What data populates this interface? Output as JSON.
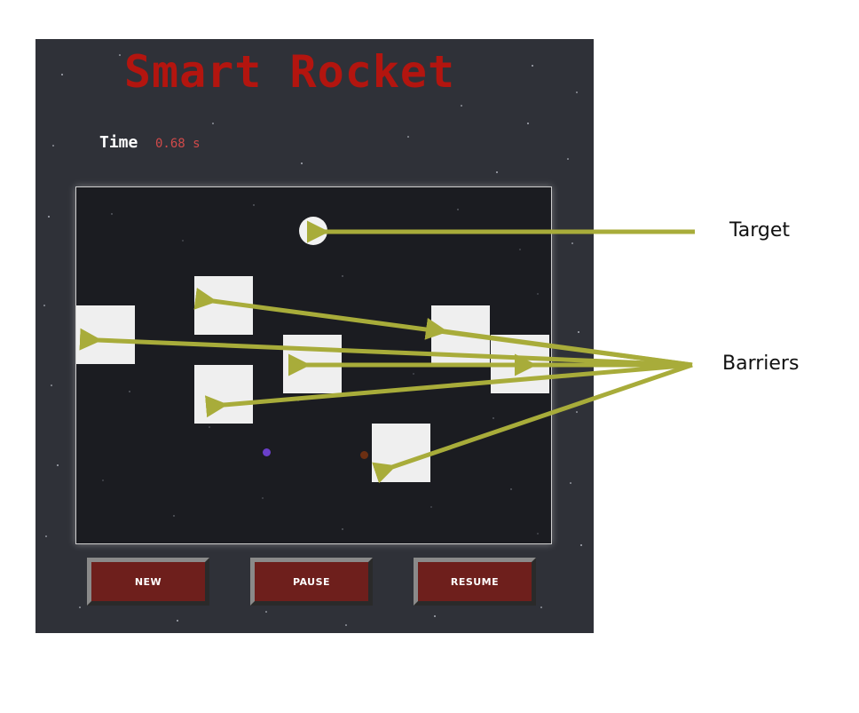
{
  "game": {
    "title": "Smart Rocket",
    "time_label": "Time",
    "time_value": "0.68 s"
  },
  "buttons": {
    "new_label": "NEW",
    "pause_label": "PAUSE",
    "resume_label": "RESUME"
  },
  "annotations": {
    "target_label": "Target",
    "barriers_label": "Barriers"
  },
  "colors": {
    "title": "#b3150f",
    "time_value": "#d04a4a",
    "panel_bg": "#2f3138",
    "canvas_bg": "#1b1c21",
    "button_bg": "#6e1f1c",
    "arrow": "#a8ac3a",
    "rocket_1": "#6a3fc9",
    "rocket_2": "#6b2f12"
  },
  "icons": {
    "target": "white-circle",
    "barrier": "white-square",
    "rocket": "small-dot"
  }
}
